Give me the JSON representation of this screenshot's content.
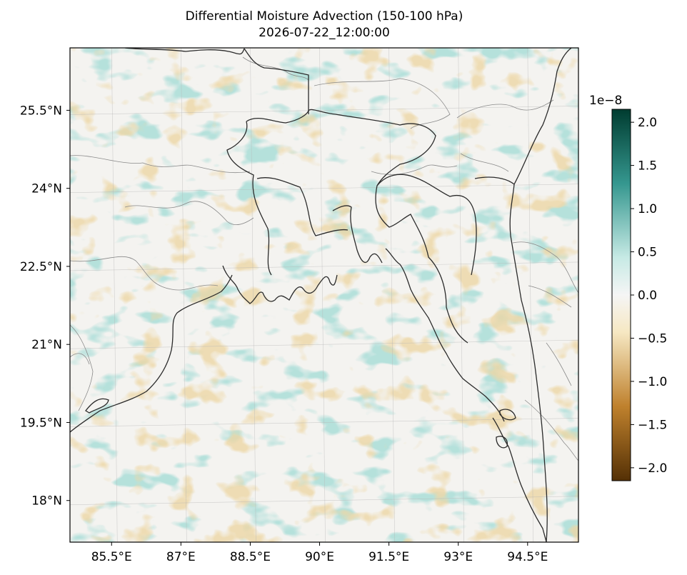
{
  "title": "Differential Moisture Advection (150-100 hPa)",
  "subtitle": "2026-07-22_12:00:00",
  "map": {
    "lon_range": [
      84.6,
      95.6
    ],
    "lat_range": [
      17.2,
      26.7
    ],
    "x_ticks": [
      {
        "value": 85.5,
        "label": "85.5°E"
      },
      {
        "value": 87.0,
        "label": "87°E"
      },
      {
        "value": 88.5,
        "label": "88.5°E"
      },
      {
        "value": 90.0,
        "label": "90°E"
      },
      {
        "value": 91.5,
        "label": "91.5°E"
      },
      {
        "value": 93.0,
        "label": "93°E"
      },
      {
        "value": 94.5,
        "label": "94.5°E"
      }
    ],
    "y_ticks": [
      {
        "value": 25.5,
        "label": "25.5°N"
      },
      {
        "value": 24.0,
        "label": "24°N"
      },
      {
        "value": 22.5,
        "label": "22.5°N"
      },
      {
        "value": 21.0,
        "label": "21°N"
      },
      {
        "value": 19.5,
        "label": "19.5°N"
      },
      {
        "value": 18.0,
        "label": "18°N"
      }
    ],
    "gridlines": true,
    "colormap": "BrBG",
    "field": "differential moisture advection"
  },
  "colorbar": {
    "exponent_label": "1e−8",
    "range": [
      -2.15,
      2.15
    ],
    "ticks": [
      {
        "value": 2.0,
        "label": "2.0"
      },
      {
        "value": 1.5,
        "label": "1.5"
      },
      {
        "value": 1.0,
        "label": "1.0"
      },
      {
        "value": 0.5,
        "label": "0.5"
      },
      {
        "value": 0.0,
        "label": "0.0"
      },
      {
        "value": -0.5,
        "label": "−0.5"
      },
      {
        "value": -1.0,
        "label": "−1.0"
      },
      {
        "value": -1.5,
        "label": "−1.5"
      },
      {
        "value": -2.0,
        "label": "−2.0"
      }
    ],
    "colors": {
      "min": "#543005",
      "low": "#bf812d",
      "midlow": "#f6e8c3",
      "mid": "#f5f5f5",
      "midhigh": "#c7eae5",
      "high": "#35978f",
      "max": "#003c30"
    }
  }
}
